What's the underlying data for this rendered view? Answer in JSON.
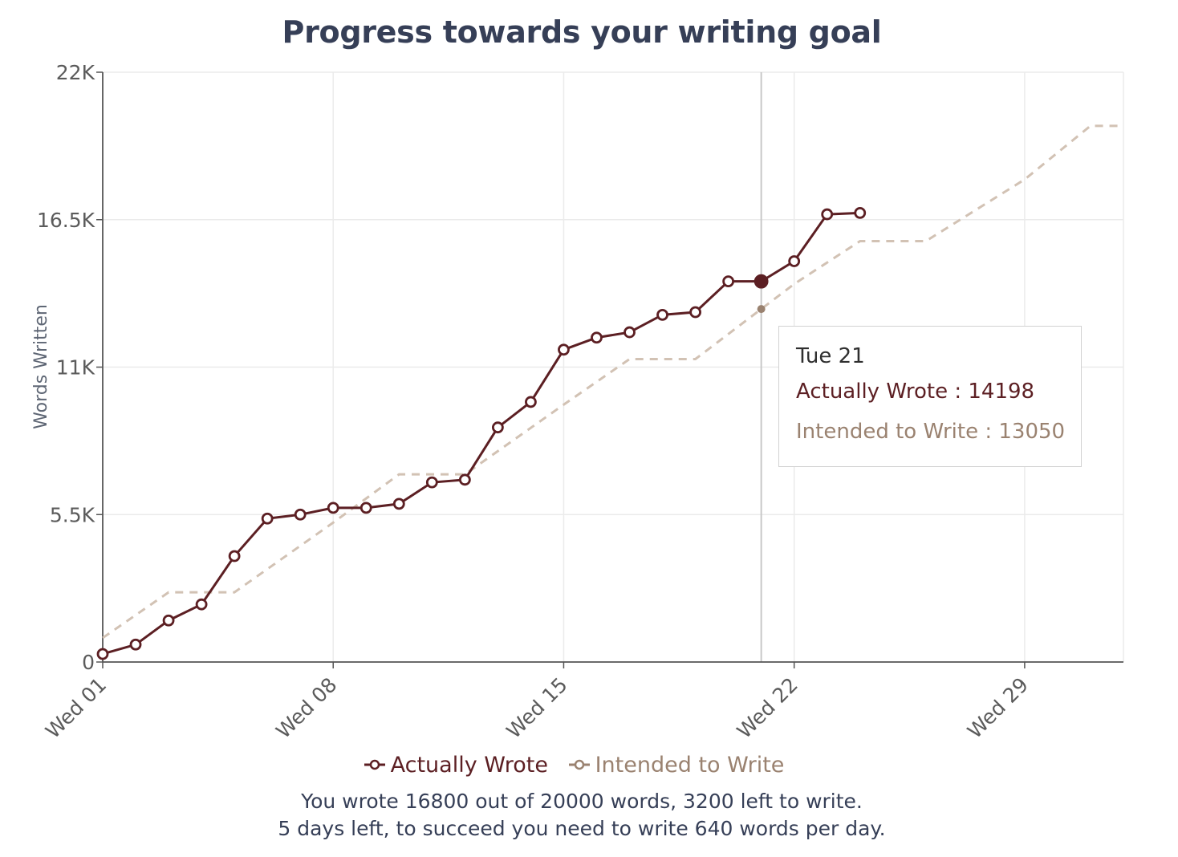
{
  "title": "Progress towards your writing goal",
  "colors": {
    "actual": "#5c1f23",
    "intended": "#d2c2b4",
    "intended_text": "#9a8270",
    "grid": "#ebebeb",
    "axis": "#555555"
  },
  "tooltip": {
    "date": "Tue 21",
    "actual_line": "Actually Wrote : 14198",
    "intended_line": "Intended to Write : 13050"
  },
  "legend": {
    "actual_label": "Actually Wrote",
    "intended_label": "Intended to Write"
  },
  "footer": {
    "line1": "You wrote 16800 out of 20000 words, 3200 left to write.",
    "line2": "5 days left, to succeed you need to write 640 words per day."
  },
  "chart_data": {
    "type": "line",
    "title": "Progress towards your writing goal",
    "ylabel": "Words Written",
    "xlabel": "",
    "x_range_days": [
      1,
      32
    ],
    "ylim": [
      0,
      22000
    ],
    "y_ticks": [
      0,
      5500,
      11000,
      16500,
      22000
    ],
    "y_tick_labels": [
      "0",
      "5.5K",
      "11K",
      "16.5K",
      "22K"
    ],
    "x_ticks": [
      1,
      8,
      15,
      22,
      29
    ],
    "x_tick_labels": [
      "Wed 01",
      "Wed 08",
      "Wed 15",
      "Wed 22",
      "Wed 29"
    ],
    "grid": true,
    "legend_position": "bottom",
    "crosshair_day": 21,
    "series": [
      {
        "name": "Actually Wrote",
        "style": "solid-markers",
        "x": [
          1,
          2,
          3,
          4,
          5,
          6,
          7,
          8,
          9,
          10,
          11,
          12,
          13,
          14,
          15,
          16,
          17,
          18,
          19,
          20,
          21,
          22,
          23,
          24
        ],
        "values": [
          300,
          650,
          1550,
          2150,
          3950,
          5350,
          5500,
          5750,
          5750,
          5900,
          6700,
          6800,
          8750,
          9700,
          11650,
          12100,
          12300,
          12950,
          13050,
          14200,
          14198,
          14950,
          16700,
          16750
        ]
      },
      {
        "name": "Intended to Write",
        "style": "dashed",
        "x": [
          1,
          3,
          5,
          8,
          10,
          12,
          15,
          17,
          19,
          22,
          24,
          26,
          29,
          31,
          32
        ],
        "values": [
          900,
          2600,
          2600,
          5200,
          7000,
          7000,
          9600,
          11300,
          11300,
          14100,
          15700,
          15700,
          18000,
          20000,
          20000
        ]
      }
    ]
  }
}
